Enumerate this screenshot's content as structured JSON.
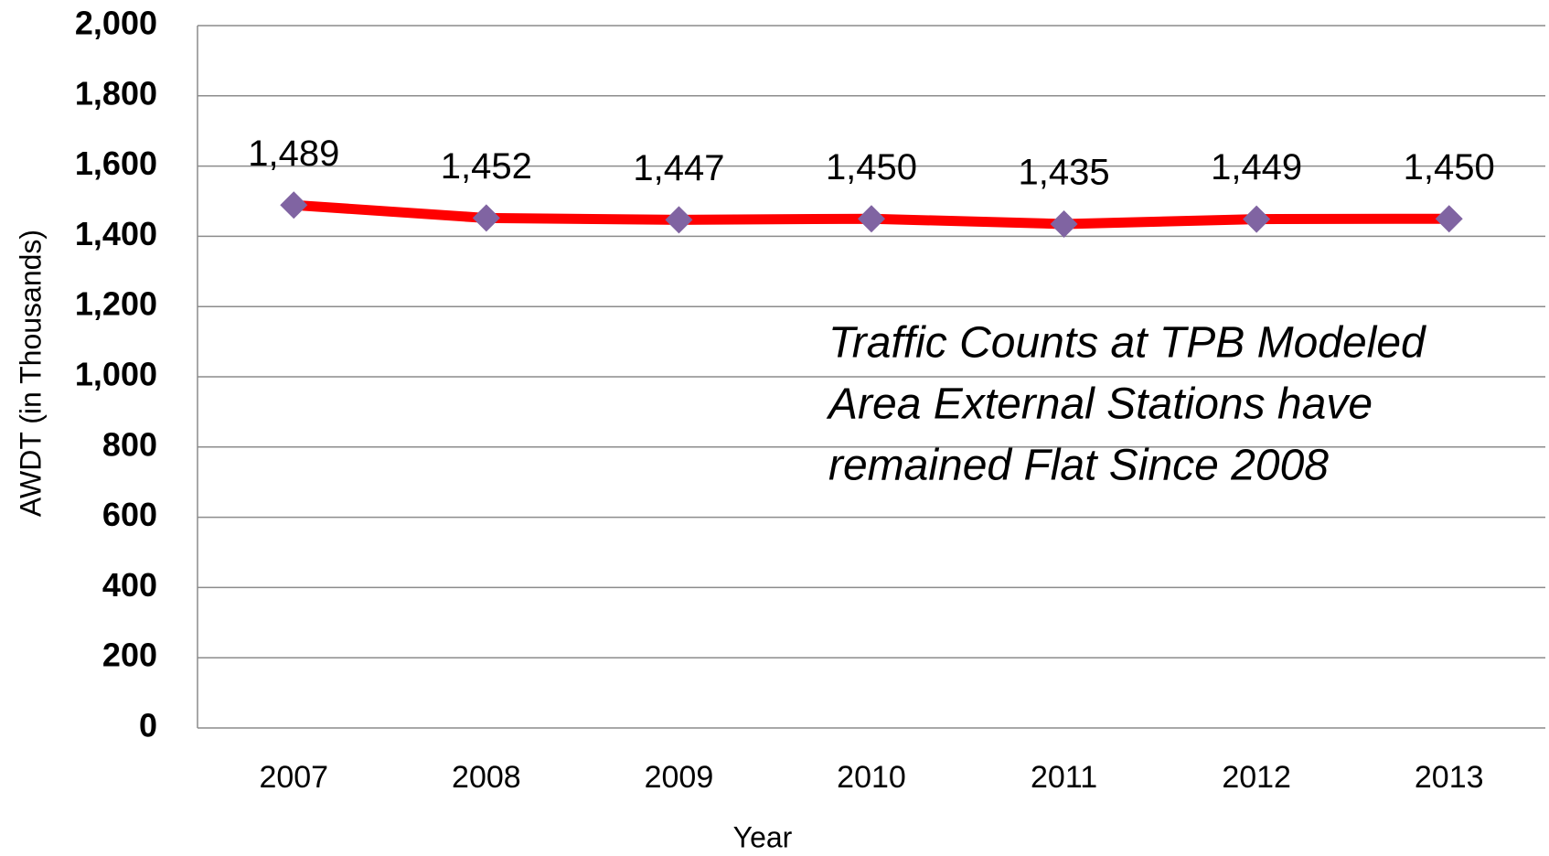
{
  "chart_data": {
    "type": "line",
    "categories": [
      "2007",
      "2008",
      "2009",
      "2010",
      "2011",
      "2012",
      "2013"
    ],
    "series": [
      {
        "color": "#ff0000",
        "marker_color": "#8064a2",
        "values": [
          1489,
          1452,
          1447,
          1450,
          1435,
          1449,
          1450
        ],
        "value_labels": [
          "1,489",
          "1,452",
          "1,447",
          "1,450",
          "1,435",
          "1,449",
          "1,450"
        ]
      }
    ],
    "ylim": [
      0,
      2000
    ],
    "yticks": [
      0,
      200,
      400,
      600,
      800,
      {
        "value": 1000,
        "label": "1,000"
      },
      {
        "value": 1200,
        "label": "1,200"
      },
      {
        "value": 1400,
        "label": "1,400"
      },
      {
        "value": 1600,
        "label": "1,600"
      },
      {
        "value": 1800,
        "label": "1,800"
      },
      {
        "value": 2000,
        "label": "2,000"
      }
    ],
    "grid": true,
    "y_label": "AWDT (in Thousands)",
    "x_label": "Year",
    "annotation_lines": [
      "Traffic Counts at TPB Modeled",
      "Area External Stations have",
      "remained Flat Since 2008"
    ]
  }
}
